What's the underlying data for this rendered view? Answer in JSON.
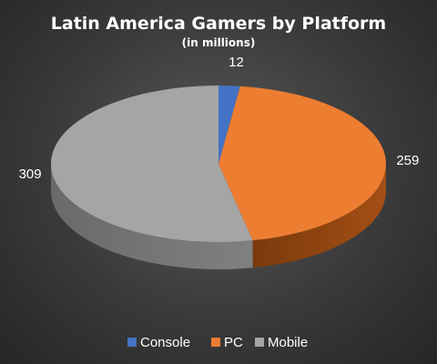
{
  "chart_data": {
    "type": "pie",
    "title": "Latin America Gamers by Platform",
    "subtitle": "(in millions)",
    "categories": [
      "Console",
      "PC",
      "Mobile"
    ],
    "values": [
      12,
      259,
      309
    ],
    "colors": [
      "#4472c4",
      "#ed7d31",
      "#a5a5a5"
    ],
    "style": "3d",
    "legend": "bottom",
    "data_labels": true
  }
}
